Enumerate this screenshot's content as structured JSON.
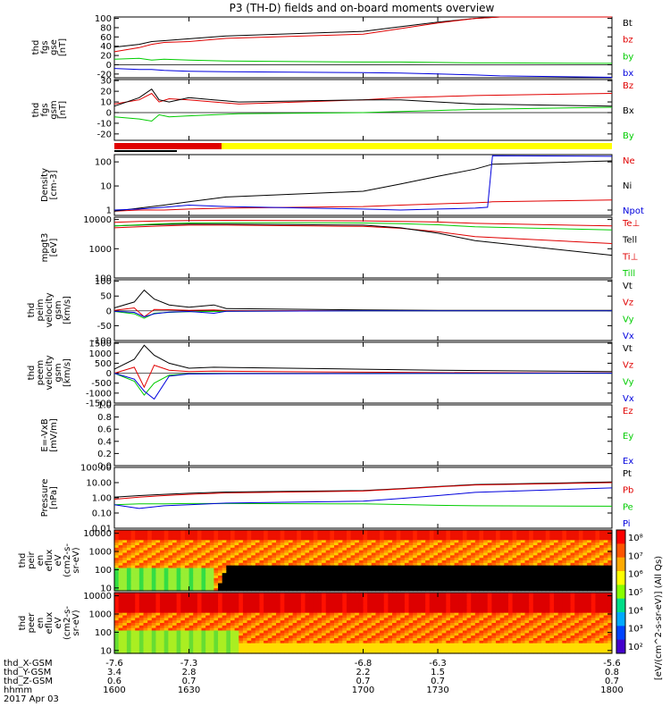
{
  "title": "P3 (TH-D) fields and on-board moments overview",
  "colors": {
    "black": "#000000",
    "red": "#e00000",
    "green": "#00cc00",
    "blue": "#0000dd",
    "yellow": "#ffff00"
  },
  "panels": [
    {
      "id": "fgs-gse",
      "ylabel": [
        "thd",
        "fgs",
        "gse",
        "[nT]"
      ],
      "ticks": [
        "100",
        "80",
        "60",
        "40",
        "20",
        "0",
        "-20"
      ],
      "tickvals": [
        100,
        80,
        60,
        40,
        20,
        0,
        -20
      ],
      "ylim": [
        -28,
        103
      ],
      "log": false,
      "legend": [
        {
          "text": "Bt",
          "color": "black"
        },
        {
          "text": "bz",
          "color": "red"
        },
        {
          "text": "by",
          "color": "green"
        },
        {
          "text": "bx",
          "color": "blue"
        }
      ]
    },
    {
      "id": "fgs-gsm",
      "ylabel": [
        "thd",
        "fgs",
        "gsm",
        "[nT]"
      ],
      "ticks": [
        "30",
        "20",
        "10",
        "0",
        "-10",
        "-20"
      ],
      "tickvals": [
        30,
        20,
        10,
        0,
        -10,
        -20
      ],
      "ylim": [
        -26,
        31
      ],
      "log": false,
      "legend": [
        {
          "text": "Bz",
          "color": "red"
        },
        {
          "text": "Bx",
          "color": "black"
        },
        {
          "text": "By",
          "color": "green"
        }
      ]
    },
    {
      "id": "density",
      "ylabel": [
        "Density",
        "[cm-3]"
      ],
      "ticks": [
        "100",
        "10",
        "1"
      ],
      "tickvals": [
        100,
        10,
        1
      ],
      "ylim": [
        0.6,
        200
      ],
      "log": true,
      "legend": [
        {
          "text": "Ne",
          "color": "red"
        },
        {
          "text": "Ni",
          "color": "black"
        },
        {
          "text": "Npot",
          "color": "blue"
        }
      ]
    },
    {
      "id": "temperature",
      "ylabel": [
        "mpgt3",
        "[eV]"
      ],
      "ticks": [
        "10000",
        "1000",
        "100"
      ],
      "tickvals": [
        10000,
        1000,
        100
      ],
      "ylim": [
        100,
        12000
      ],
      "log": true,
      "legend": [
        {
          "text": "Te⊥",
          "color": "red"
        },
        {
          "text": "Tell",
          "color": "black"
        },
        {
          "text": "Ti⊥",
          "color": "red"
        },
        {
          "text": "Till",
          "color": "green"
        }
      ]
    },
    {
      "id": "peim-velocity",
      "ylabel": [
        "thd",
        "peim",
        "velocity",
        "gsm",
        "[km/s]"
      ],
      "ticks": [
        "100",
        "50",
        "0",
        "-50",
        "-100"
      ],
      "tickvals": [
        100,
        50,
        0,
        -50,
        -100
      ],
      "ylim": [
        -100,
        105
      ],
      "log": false,
      "legend": [
        {
          "text": "Vt",
          "color": "black"
        },
        {
          "text": "Vz",
          "color": "red"
        },
        {
          "text": "Vy",
          "color": "green"
        },
        {
          "text": "Vx",
          "color": "blue"
        }
      ]
    },
    {
      "id": "peem-velocity",
      "ylabel": [
        "thd",
        "peem",
        "velocity",
        "gsm",
        "[km/s]"
      ],
      "ticks": [
        "1500",
        "1000",
        "500",
        "0",
        "-500",
        "-1000",
        "-1500"
      ],
      "tickvals": [
        1500,
        1000,
        500,
        0,
        -500,
        -1000,
        -1500
      ],
      "ylim": [
        -1500,
        1550
      ],
      "log": false,
      "legend": [
        {
          "text": "Vt",
          "color": "black"
        },
        {
          "text": "Vz",
          "color": "red"
        },
        {
          "text": "Vy",
          "color": "green"
        },
        {
          "text": "Vx",
          "color": "blue"
        }
      ]
    },
    {
      "id": "efield",
      "ylabel": [
        "E=-VxB",
        "[mV/m]"
      ],
      "ticks": [
        "1.0",
        "0.8",
        "0.6",
        "0.4",
        "0.2",
        "0.0"
      ],
      "tickvals": [
        1.0,
        0.8,
        0.6,
        0.4,
        0.2,
        0.0
      ],
      "ylim": [
        0,
        1.0
      ],
      "log": false,
      "legend": [
        {
          "text": "Ez",
          "color": "red"
        },
        {
          "text": "Ey",
          "color": "green"
        },
        {
          "text": "Ex",
          "color": "blue"
        }
      ]
    },
    {
      "id": "pressure",
      "ylabel": [
        "Pressure",
        "[nPa]"
      ],
      "ticks": [
        "100.00",
        "10.00",
        "1.00",
        "0.10",
        "0.01"
      ],
      "tickvals": [
        100,
        10,
        1,
        0.1,
        0.01
      ],
      "ylim": [
        0.01,
        100
      ],
      "log": true,
      "legend": [
        {
          "text": "Pt",
          "color": "black"
        },
        {
          "text": "Pb",
          "color": "red"
        },
        {
          "text": "Pe",
          "color": "green"
        },
        {
          "text": "Pi",
          "color": "blue"
        }
      ]
    },
    {
      "id": "peir-spec",
      "ylabel": [
        "thd",
        "peir",
        "en",
        "eflux",
        "eV",
        "(cm2-s-",
        "sr-eV)"
      ],
      "ticks": [
        "10000",
        "1000",
        "100",
        "10"
      ],
      "tickvals": [
        10000,
        1000,
        100,
        10
      ],
      "ylim": [
        7,
        15000
      ],
      "log": true,
      "legend": []
    },
    {
      "id": "peer-spec",
      "ylabel": [
        "thd",
        "peer",
        "en",
        "eflux",
        "eV",
        "(cm2-s-",
        "sr-eV)"
      ],
      "ticks": [
        "10000",
        "1000",
        "100",
        "10"
      ],
      "tickvals": [
        10000,
        1000,
        100,
        10
      ],
      "ylim": [
        7,
        15000
      ],
      "log": true,
      "legend": []
    }
  ],
  "colorbar": {
    "ticks": [
      "10⁸",
      "10⁷",
      "10⁶",
      "10⁵",
      "10⁴",
      "10³",
      "10²"
    ],
    "label": "[eV/(cm^2-s-sr-eV)] (All Qs)"
  },
  "xaxis": {
    "xlim": [
      1600,
      1800
    ],
    "ticks": [
      {
        "x": 1600,
        "label": "1600",
        "X": "-7.6",
        "Y": "3.4",
        "Z": "0.6"
      },
      {
        "x": 1630,
        "label": "1630",
        "X": "-7.3",
        "Y": "2.8",
        "Z": "0.7"
      },
      {
        "x": 1700,
        "label": "1700",
        "X": "-6.8",
        "Y": "2.2",
        "Z": "0.7"
      },
      {
        "x": 1730,
        "label": "1730",
        "X": "-6.3",
        "Y": "1.5",
        "Z": "0.7"
      },
      {
        "x": 1800,
        "label": "1800",
        "X": "-5.6",
        "Y": "0.8",
        "Z": "0.7"
      }
    ],
    "row_labels": [
      "thd_X-GSM",
      "thd_Y-GSM",
      "thd_Z-GSM",
      "hhmm"
    ],
    "date": "2017 Apr 03"
  },
  "chart_data": [
    {
      "type": "line",
      "title": "P3 (TH-D) fields and on-board moments overview",
      "ylabel": "thd fgs gse [nT]",
      "ylim": [
        -28,
        103
      ],
      "x": [
        1600,
        1610,
        1615,
        1620,
        1630,
        1645,
        1700,
        1715,
        1730,
        1745,
        1755,
        1800
      ],
      "series": [
        {
          "name": "Bt",
          "values": [
            38,
            44,
            50,
            52,
            56,
            62,
            72,
            82,
            92,
            100,
            103,
            103
          ]
        },
        {
          "name": "bz",
          "values": [
            28,
            37,
            44,
            48,
            50,
            57,
            66,
            78,
            90,
            100,
            103,
            103
          ]
        },
        {
          "name": "by",
          "values": [
            12,
            14,
            10,
            12,
            10,
            8,
            6,
            6,
            5,
            4,
            4,
            3
          ]
        },
        {
          "name": "bx",
          "values": [
            -8,
            -10,
            -10,
            -12,
            -14,
            -15,
            -17,
            -18,
            -20,
            -22,
            -24,
            -27
          ]
        }
      ]
    },
    {
      "type": "line",
      "ylabel": "thd fgs gsm [nT]",
      "ylim": [
        -26,
        31
      ],
      "x": [
        1600,
        1610,
        1615,
        1618,
        1622,
        1630,
        1640,
        1650,
        1700,
        1715,
        1730,
        1745,
        1800
      ],
      "series": [
        {
          "name": "Bz",
          "values": [
            8,
            12,
            18,
            10,
            13,
            12,
            10,
            8,
            12,
            14,
            15,
            16,
            18
          ]
        },
        {
          "name": "Bx",
          "values": [
            6,
            14,
            22,
            12,
            10,
            14,
            12,
            10,
            12,
            12,
            10,
            8,
            6
          ]
        },
        {
          "name": "By",
          "values": [
            -4,
            -6,
            -8,
            -2,
            -4,
            -3,
            -2,
            -1,
            0,
            1,
            2,
            3,
            5
          ]
        }
      ]
    },
    {
      "type": "line",
      "ylabel": "Density [cm-3]",
      "ylim": [
        0.6,
        200
      ],
      "log": true,
      "x": [
        1600,
        1610,
        1620,
        1630,
        1645,
        1700,
        1715,
        1730,
        1745,
        1750,
        1752,
        1800
      ],
      "series": [
        {
          "name": "Ne",
          "values": [
            0.9,
            1.0,
            1.0,
            1.1,
            1.2,
            1.4,
            1.6,
            1.8,
            2.0,
            2.1,
            2.2,
            2.6
          ]
        },
        {
          "name": "Ni",
          "values": [
            0.9,
            1.2,
            1.6,
            2.2,
            3.5,
            6,
            12,
            25,
            50,
            70,
            80,
            110
          ]
        },
        {
          "name": "Npot",
          "values": [
            1.0,
            1.1,
            1.3,
            1.6,
            1.4,
            1.1,
            1.0,
            1.1,
            1.2,
            1.3,
            180,
            170
          ]
        }
      ]
    },
    {
      "type": "line",
      "ylabel": "mpgt3 [eV]",
      "ylim": [
        100,
        12000
      ],
      "log": true,
      "x": [
        1600,
        1610,
        1620,
        1630,
        1645,
        1700,
        1715,
        1730,
        1745,
        1800
      ],
      "series": [
        {
          "name": "Te⊥",
          "values": [
            5200,
            5600,
            6000,
            6400,
            6400,
            5800,
            5000,
            3800,
            2600,
            1500
          ]
        },
        {
          "name": "Tell",
          "values": [
            6000,
            6400,
            6800,
            7000,
            7000,
            6400,
            5200,
            3400,
            1900,
            600
          ]
        },
        {
          "name": "Ti⊥",
          "values": [
            8000,
            8600,
            9000,
            9200,
            9400,
            9000,
            8600,
            8200,
            7400,
            6000
          ]
        },
        {
          "name": "Till",
          "values": [
            6000,
            6600,
            7200,
            7600,
            7800,
            7600,
            7200,
            6600,
            5600,
            4400
          ]
        }
      ]
    },
    {
      "type": "line",
      "ylabel": "thd peim velocity gsm [km/s]",
      "ylim": [
        -100,
        105
      ],
      "x": [
        1600,
        1608,
        1612,
        1616,
        1622,
        1630,
        1640,
        1645,
        1700,
        1730,
        1800
      ],
      "series": [
        {
          "name": "Vt",
          "values": [
            10,
            30,
            70,
            40,
            20,
            12,
            20,
            8,
            3,
            2,
            2
          ]
        },
        {
          "name": "Vz",
          "values": [
            2,
            10,
            -20,
            5,
            4,
            2,
            3,
            1,
            0,
            0,
            0
          ]
        },
        {
          "name": "Vy",
          "values": [
            -2,
            -10,
            -25,
            -8,
            -5,
            -3,
            -2,
            -1,
            0,
            0,
            0
          ]
        },
        {
          "name": "Vx",
          "values": [
            -1,
            -5,
            -20,
            -10,
            -4,
            -2,
            -8,
            -1,
            0,
            0,
            0
          ]
        }
      ]
    },
    {
      "type": "line",
      "ylabel": "thd peem velocity gsm [km/s]",
      "ylim": [
        -1500,
        1550
      ],
      "x": [
        1600,
        1608,
        1612,
        1616,
        1622,
        1630,
        1640,
        1700,
        1730,
        1800
      ],
      "series": [
        {
          "name": "Vt",
          "values": [
            200,
            700,
            1400,
            900,
            500,
            250,
            300,
            200,
            150,
            80
          ]
        },
        {
          "name": "Vz",
          "values": [
            0,
            300,
            -700,
            400,
            150,
            80,
            100,
            50,
            30,
            10
          ]
        },
        {
          "name": "Vy",
          "values": [
            0,
            -400,
            -1100,
            -500,
            -100,
            -30,
            -20,
            -10,
            -5,
            0
          ]
        },
        {
          "name": "Vx",
          "values": [
            0,
            -300,
            -900,
            -1300,
            -150,
            -40,
            -30,
            -20,
            -10,
            0
          ]
        }
      ]
    },
    {
      "type": "line",
      "ylabel": "E=-VxB [mV/m]",
      "ylim": [
        0,
        1.0
      ],
      "x": [],
      "series": [
        {
          "name": "Ez",
          "values": []
        },
        {
          "name": "Ey",
          "values": []
        },
        {
          "name": "Ex",
          "values": []
        }
      ]
    },
    {
      "type": "line",
      "ylabel": "Pressure [nPa]",
      "ylim": [
        0.01,
        100
      ],
      "log": true,
      "x": [
        1600,
        1610,
        1620,
        1630,
        1645,
        1700,
        1715,
        1730,
        1745,
        1800
      ],
      "series": [
        {
          "name": "Pt",
          "values": [
            1.1,
            1.4,
            1.7,
            2.0,
            2.4,
            3.0,
            4.0,
            5.5,
            7.5,
            11
          ]
        },
        {
          "name": "Pb",
          "values": [
            0.8,
            1.1,
            1.4,
            1.7,
            2.1,
            2.8,
            3.8,
            5.2,
            7.0,
            10
          ]
        },
        {
          "name": "Pe",
          "values": [
            0.35,
            0.4,
            0.4,
            0.42,
            0.42,
            0.4,
            0.36,
            0.32,
            0.3,
            0.28
          ]
        },
        {
          "name": "Pi",
          "values": [
            0.35,
            0.2,
            0.3,
            0.35,
            0.45,
            0.6,
            0.9,
            1.4,
            2.3,
            4.5
          ]
        }
      ]
    },
    {
      "type": "heatmap",
      "ylabel": "thd peir en eflux eV/(cm2-s-sr-eV)",
      "ylim": [
        7,
        15000
      ],
      "log": true,
      "xlim": [
        1600,
        1800
      ],
      "clim": [
        100,
        100000000
      ]
    },
    {
      "type": "heatmap",
      "ylabel": "thd peer en eflux eV/(cm2-s-sr-eV)",
      "ylim": [
        7,
        15000
      ],
      "log": true,
      "xlim": [
        1600,
        1800
      ],
      "clim": [
        100,
        100000000
      ]
    }
  ]
}
